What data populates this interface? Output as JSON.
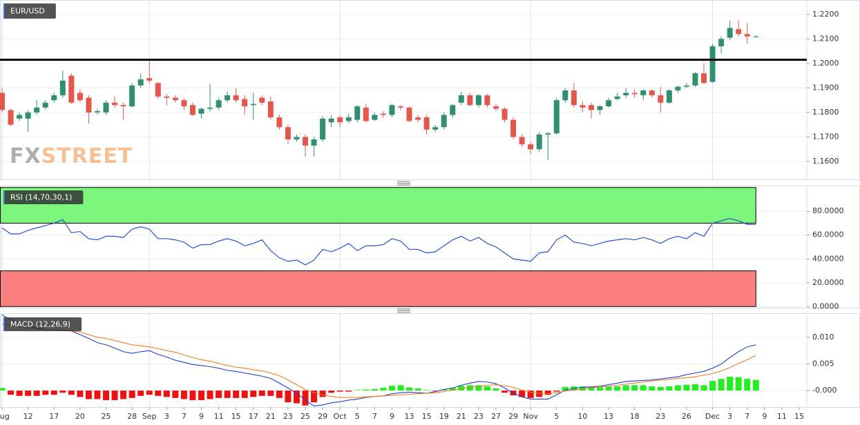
{
  "chart_data": [
    {
      "type": "candlestick",
      "title": "EUR/USD",
      "watermark": [
        "FX",
        "STREET"
      ],
      "up_color": "#2f8f70",
      "down_color": "#e4574c",
      "level": {
        "value": 1.2015,
        "color": "#000000"
      },
      "ylim": [
        1.1527,
        1.2256
      ],
      "yticks": [
        {
          "value": 1.16,
          "label": "1.1600"
        },
        {
          "value": 1.17,
          "label": "1.1700"
        },
        {
          "value": 1.18,
          "label": "1.1800"
        },
        {
          "value": 1.19,
          "label": "1.1900"
        },
        {
          "value": 1.2,
          "label": "1.2000"
        },
        {
          "value": 1.21,
          "label": "1.2100"
        },
        {
          "value": 1.22,
          "label": "1.2200"
        }
      ],
      "grid": true,
      "open": [
        1.188,
        1.181,
        1.1775,
        1.1775,
        1.18,
        1.182,
        1.185,
        1.187,
        1.195,
        1.188,
        1.186,
        1.18,
        1.18,
        1.184,
        1.183,
        1.1825,
        1.191,
        1.194,
        1.192,
        1.1865,
        1.186,
        1.185,
        1.183,
        1.1795,
        1.1815,
        1.182,
        1.185,
        1.187,
        1.1855,
        1.183,
        1.186,
        1.1845,
        1.178,
        1.174,
        1.169,
        1.17,
        1.1665,
        1.169,
        1.176,
        1.178,
        1.1765,
        1.177,
        1.182,
        1.177,
        1.1795,
        1.179,
        1.1825,
        1.182,
        1.178,
        1.178,
        1.173,
        1.174,
        1.179,
        1.184,
        1.187,
        1.183,
        1.187,
        1.1825,
        1.1815,
        1.177,
        1.17,
        1.167,
        1.165,
        1.171,
        1.1715,
        1.185,
        1.189,
        1.183,
        1.183,
        1.181,
        1.1825,
        1.1855,
        1.187,
        1.188,
        1.187,
        1.189,
        1.187,
        1.184,
        1.189,
        1.1905,
        1.191,
        1.196,
        1.1925,
        1.207,
        1.2105,
        1.214,
        1.212,
        1.211,
        null,
        null,
        null,
        null,
        null
      ],
      "high": [
        1.19,
        1.1815,
        1.18,
        1.181,
        1.185,
        1.185,
        1.188,
        1.197,
        1.196,
        1.1895,
        1.187,
        1.1815,
        1.185,
        1.1865,
        1.184,
        1.192,
        1.196,
        1.201,
        1.1925,
        1.1875,
        1.187,
        1.186,
        1.184,
        1.182,
        1.1915,
        1.186,
        1.1885,
        1.19,
        1.187,
        1.188,
        1.187,
        1.1865,
        1.179,
        1.175,
        1.171,
        1.171,
        1.17,
        1.1785,
        1.179,
        1.179,
        1.1795,
        1.183,
        1.1835,
        1.18,
        1.1805,
        1.1835,
        1.183,
        1.1825,
        1.179,
        1.179,
        1.175,
        1.18,
        1.1835,
        1.1885,
        1.188,
        1.1875,
        1.1875,
        1.1835,
        1.182,
        1.178,
        1.171,
        1.168,
        1.172,
        1.172,
        1.186,
        1.19,
        1.192,
        1.1845,
        1.184,
        1.183,
        1.186,
        1.188,
        1.19,
        1.1895,
        1.1895,
        1.1895,
        1.1905,
        1.1895,
        1.191,
        1.192,
        1.1965,
        1.2,
        1.208,
        1.211,
        1.2175,
        1.2175,
        1.2165,
        1.2115,
        null,
        null,
        null,
        null,
        null
      ],
      "low": [
        1.18,
        1.1745,
        1.1765,
        1.172,
        1.179,
        1.181,
        1.184,
        1.186,
        1.1835,
        1.184,
        1.1755,
        1.179,
        1.179,
        1.182,
        1.177,
        1.182,
        1.19,
        1.192,
        1.1855,
        1.183,
        1.184,
        1.181,
        1.1785,
        1.1775,
        1.1805,
        1.181,
        1.184,
        1.184,
        1.179,
        1.177,
        1.183,
        1.177,
        1.173,
        1.167,
        1.168,
        1.162,
        1.162,
        1.168,
        1.174,
        1.174,
        1.1755,
        1.176,
        1.176,
        1.1765,
        1.178,
        1.178,
        1.181,
        1.176,
        1.176,
        1.171,
        1.172,
        1.173,
        1.178,
        1.183,
        1.1825,
        1.182,
        1.182,
        1.1805,
        1.176,
        1.169,
        1.166,
        1.163,
        1.164,
        1.1605,
        1.171,
        1.184,
        1.182,
        1.18,
        1.1775,
        1.179,
        1.182,
        1.185,
        1.186,
        1.186,
        1.185,
        1.186,
        1.18,
        1.1835,
        1.188,
        1.19,
        1.1905,
        1.1915,
        1.192,
        1.204,
        1.2095,
        1.211,
        1.208,
        1.2105,
        null,
        null,
        null,
        null,
        null
      ],
      "close": [
        1.181,
        1.175,
        1.179,
        1.18,
        1.182,
        1.184,
        1.187,
        1.193,
        1.184,
        1.185,
        1.18,
        1.1805,
        1.184,
        1.183,
        1.1825,
        1.191,
        1.1935,
        1.193,
        1.1865,
        1.186,
        1.185,
        1.1825,
        1.179,
        1.1815,
        1.182,
        1.185,
        1.187,
        1.185,
        1.1825,
        1.1835,
        1.184,
        1.178,
        1.174,
        1.169,
        1.17,
        1.1665,
        1.169,
        1.1775,
        1.1775,
        1.176,
        1.178,
        1.1825,
        1.1765,
        1.179,
        1.179,
        1.183,
        1.182,
        1.1765,
        1.177,
        1.173,
        1.174,
        1.179,
        1.183,
        1.187,
        1.183,
        1.187,
        1.183,
        1.1815,
        1.177,
        1.17,
        1.167,
        1.165,
        1.171,
        1.1715,
        1.185,
        1.189,
        1.183,
        1.182,
        1.181,
        1.1825,
        1.185,
        1.1865,
        1.188,
        1.1875,
        1.189,
        1.187,
        1.184,
        1.189,
        1.1905,
        1.191,
        1.196,
        1.192,
        1.207,
        1.21,
        1.2145,
        1.212,
        1.211,
        1.211,
        null,
        null,
        null,
        null,
        null
      ]
    },
    {
      "type": "line",
      "title": "RSI (14,70,30,1)",
      "color": "#2a4fd0",
      "zones": [
        {
          "from": 70,
          "to": 100,
          "color": "#7cf57c"
        },
        {
          "from": 0,
          "to": 30,
          "color": "#fa7f7f"
        }
      ],
      "ylim": [
        -1,
        101
      ],
      "yticks": [
        {
          "value": 0,
          "label": "0.0000"
        },
        {
          "value": 20,
          "label": "20.0000"
        },
        {
          "value": 40,
          "label": "40.0000"
        },
        {
          "value": 60,
          "label": "60.0000"
        },
        {
          "value": 80,
          "label": "80.0000"
        }
      ],
      "grid": true,
      "values": [
        66,
        61,
        61,
        64,
        66,
        68,
        70,
        73,
        62,
        63,
        57,
        56,
        59,
        59,
        58,
        65,
        67,
        65,
        57,
        57,
        56,
        54,
        49,
        52,
        52,
        55,
        57,
        55,
        51,
        53,
        56,
        47,
        41,
        38,
        39,
        35,
        39,
        48,
        46,
        49,
        53,
        47,
        51,
        51,
        52,
        57,
        55,
        48,
        48,
        45,
        46,
        51,
        56,
        59,
        55,
        58,
        53,
        50,
        45,
        40,
        39,
        38,
        45,
        46,
        56,
        60,
        54,
        53,
        51,
        53,
        55,
        56,
        57,
        56,
        58,
        56,
        53,
        57,
        59,
        57,
        62,
        59,
        70,
        72,
        74,
        72,
        69,
        69,
        null,
        null,
        null,
        null,
        null
      ]
    },
    {
      "type": "macd",
      "title": "MACD (12,26,9)",
      "ylim": [
        -0.0031,
        0.0144
      ],
      "yticks": [
        {
          "value": 0,
          "label": "-0.000"
        },
        {
          "value": 0.005,
          "label": "0.005"
        },
        {
          "value": 0.01,
          "label": "0.010"
        }
      ],
      "grid": true,
      "categories": [
        "Aug",
        null,
        null,
        "12",
        null,
        null,
        "17",
        null,
        null,
        "20",
        null,
        null,
        "25",
        null,
        null,
        "28",
        null,
        "Sep",
        null,
        "3",
        null,
        "7",
        null,
        "9",
        null,
        "11",
        null,
        "15",
        null,
        "17",
        null,
        "21",
        null,
        "23",
        null,
        "25",
        null,
        "29",
        null,
        "Oct",
        null,
        "5",
        null,
        "7",
        null,
        "9",
        null,
        "13",
        null,
        "15",
        null,
        "19",
        null,
        "21",
        null,
        "23",
        null,
        "27",
        null,
        "29",
        null,
        "Nov",
        null,
        null,
        "5",
        null,
        null,
        "10",
        null,
        null,
        "13",
        null,
        null,
        "18",
        null,
        null,
        "23",
        null,
        null,
        "26",
        null,
        null,
        "Dec",
        null,
        "3",
        null,
        "7",
        null,
        "9",
        null,
        "11",
        null,
        "15"
      ],
      "histogram": {
        "up_color": "#22ee22",
        "down_color": "#ee1111",
        "values": [
          0.0005,
          -0.0008,
          -0.001,
          -0.001,
          -0.001,
          -0.0008,
          -0.0008,
          -0.0004,
          -0.0008,
          -0.0012,
          -0.0016,
          -0.0016,
          -0.0018,
          -0.0018,
          -0.0016,
          -0.0014,
          -0.001,
          -0.0008,
          -0.001,
          -0.0012,
          -0.0014,
          -0.0016,
          -0.0018,
          -0.0018,
          -0.0016,
          -0.0014,
          -0.0014,
          -0.0014,
          -0.0014,
          -0.0012,
          -0.001,
          -0.001,
          -0.0014,
          -0.0022,
          -0.0024,
          -0.0028,
          -0.0022,
          -0.0012,
          -0.0004,
          -0.0002,
          -0.0002,
          0.0001,
          0.0002,
          0.0003,
          0.0005,
          0.0009,
          0.001,
          0.0006,
          0.0004,
          0.0001,
          -0.0001,
          0.0002,
          0.0005,
          0.0009,
          0.001,
          0.001,
          0.0008,
          0.0004,
          -0.0004,
          -0.0009,
          -0.0012,
          -0.0014,
          -0.0012,
          -0.0008,
          -0.0002,
          0.0007,
          0.0008,
          0.0008,
          0.0007,
          0.0006,
          0.0007,
          0.0008,
          0.001,
          0.001,
          0.001,
          0.0008,
          0.0007,
          0.0008,
          0.001,
          0.0011,
          0.0012,
          0.001,
          0.0018,
          0.0022,
          0.0026,
          0.0025,
          0.0022,
          0.002,
          null,
          null,
          null,
          null,
          null
        ]
      },
      "series": [
        {
          "color": "#1f3fd1",
          "values": [
            0.0142,
            0.0133,
            0.0126,
            0.0121,
            0.0118,
            0.0115,
            0.0114,
            0.0113,
            0.0112,
            0.0105,
            0.0098,
            0.009,
            0.0086,
            0.008,
            0.0073,
            0.007,
            0.0073,
            0.0075,
            0.0068,
            0.0063,
            0.0057,
            0.0053,
            0.0049,
            0.0047,
            0.0045,
            0.0042,
            0.0038,
            0.0036,
            0.0033,
            0.003,
            0.0027,
            0.0023,
            0.0014,
            0.0005,
            -0.0005,
            -0.0018,
            -0.0029,
            -0.0027,
            -0.0023,
            -0.0021,
            -0.0018,
            -0.0016,
            -0.0013,
            -0.0011,
            -0.001,
            -0.0006,
            -0.0004,
            -0.0003,
            -0.0004,
            -0.0005,
            -0.0002,
            0.0002,
            0.0005,
            0.001,
            0.0014,
            0.0017,
            0.0016,
            0.0013,
            0.0005,
            -0.0005,
            -0.0012,
            -0.0016,
            -0.0016,
            -0.0016,
            -0.0008,
            0.0001,
            0.0004,
            0.0006,
            0.0007,
            0.0008,
            0.0011,
            0.0014,
            0.0017,
            0.0018,
            0.0019,
            0.002,
            0.0022,
            0.0024,
            0.0026,
            0.003,
            0.0033,
            0.0036,
            0.0042,
            0.005,
            0.0062,
            0.0073,
            0.0082,
            0.0086,
            null,
            null,
            null,
            null,
            null
          ]
        },
        {
          "color": "#f07d1a",
          "values": [
            0.0125,
            0.0122,
            0.012,
            0.0118,
            0.0116,
            0.0115,
            0.0114,
            0.0113,
            0.0112,
            0.011,
            0.0105,
            0.01,
            0.0098,
            0.0094,
            0.009,
            0.0086,
            0.0084,
            0.0082,
            0.0079,
            0.0075,
            0.0072,
            0.0067,
            0.0062,
            0.0058,
            0.0055,
            0.0051,
            0.0047,
            0.0044,
            0.0042,
            0.0039,
            0.0037,
            0.0033,
            0.0028,
            0.002,
            0.0011,
            0.0002,
            -0.0004,
            -0.0008,
            -0.0011,
            -0.0013,
            -0.0013,
            -0.0013,
            -0.0012,
            -0.0011,
            -0.001,
            -0.0009,
            -0.0008,
            -0.0007,
            -0.0006,
            -0.0005,
            -0.0004,
            -0.0002,
            0.0001,
            0.0004,
            0.0006,
            0.0008,
            0.001,
            0.0011,
            0.0009,
            0.0006,
            0.0001,
            -0.0003,
            -0.0005,
            -0.0006,
            -0.0004,
            -0.0001,
            0.0001,
            0.0003,
            0.0005,
            0.0007,
            0.0008,
            0.001,
            0.0012,
            0.0014,
            0.0016,
            0.0018,
            0.002,
            0.0021,
            0.0023,
            0.0024,
            0.0026,
            0.0029,
            0.0032,
            0.0037,
            0.0043,
            0.0051,
            0.0058,
            0.0066,
            null,
            null,
            null,
            null,
            null
          ]
        }
      ]
    }
  ]
}
